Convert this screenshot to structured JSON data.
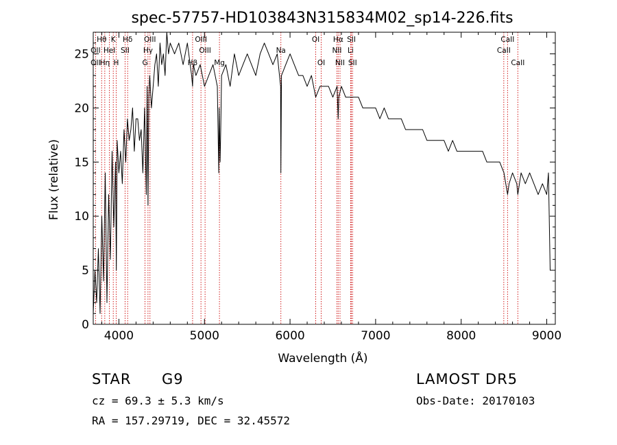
{
  "chart_data": {
    "type": "line",
    "title": "spec-57757-HD103843N315834M02_sp14-226.fits",
    "xlabel": "Wavelength (Å)",
    "ylabel": "Flux (relative)",
    "xlim": [
      3700,
      9100
    ],
    "ylim": [
      0,
      27
    ],
    "xticks": [
      4000,
      5000,
      6000,
      7000,
      8000,
      9000
    ],
    "yticks": [
      0,
      5,
      10,
      15,
      20,
      25
    ],
    "grid": false,
    "series": [
      {
        "x": [
          3700,
          3720,
          3740,
          3760,
          3780,
          3800,
          3820,
          3840,
          3860,
          3880,
          3900,
          3920,
          3940,
          3960,
          3970,
          3980,
          4000,
          4020,
          4040,
          4060,
          4080,
          4100,
          4120,
          4140,
          4160,
          4180,
          4200,
          4220,
          4240,
          4260,
          4280,
          4300,
          4320,
          4330,
          4340,
          4350,
          4360,
          4380,
          4400,
          4420,
          4440,
          4460,
          4480,
          4500,
          4520,
          4540,
          4560,
          4580,
          4600,
          4650,
          4700,
          4750,
          4800,
          4850,
          4861,
          4870,
          4900,
          4950,
          5000,
          5050,
          5100,
          5150,
          5167,
          5172,
          5183,
          5190,
          5200,
          5250,
          5300,
          5350,
          5400,
          5450,
          5500,
          5550,
          5600,
          5650,
          5700,
          5750,
          5800,
          5850,
          5890,
          5893,
          5896,
          5900,
          5950,
          6000,
          6050,
          6100,
          6150,
          6200,
          6250,
          6300,
          6350,
          6400,
          6450,
          6500,
          6550,
          6563,
          6570,
          6600,
          6650,
          6700,
          6750,
          6800,
          6850,
          6900,
          6950,
          7000,
          7050,
          7100,
          7150,
          7200,
          7250,
          7300,
          7350,
          7400,
          7450,
          7500,
          7550,
          7600,
          7650,
          7700,
          7750,
          7800,
          7850,
          7900,
          7950,
          8000,
          8050,
          8100,
          8150,
          8200,
          8250,
          8300,
          8350,
          8400,
          8450,
          8500,
          8542,
          8560,
          8600,
          8650,
          8662,
          8700,
          8750,
          8800,
          8850,
          8900,
          8950,
          9000,
          9020,
          9040
        ],
        "values": [
          1,
          5,
          2,
          7,
          1,
          10,
          4,
          14,
          2,
          12,
          6,
          16,
          9,
          15,
          5,
          17,
          14,
          16,
          13,
          18,
          15,
          19,
          17,
          18,
          20,
          16,
          19,
          19,
          17,
          18,
          14,
          20,
          12,
          22,
          11,
          21,
          23,
          20,
          22,
          24,
          25,
          22,
          26,
          24,
          25,
          23,
          27,
          25,
          26,
          25,
          26,
          24,
          26,
          23,
          22,
          24,
          23,
          24,
          22,
          23,
          24,
          22,
          14,
          20,
          15,
          18,
          23,
          24,
          22,
          25,
          23,
          24,
          25,
          24,
          23,
          25,
          26,
          25,
          24,
          25,
          22,
          14,
          18,
          23,
          24,
          25,
          24,
          23,
          23,
          22,
          23,
          21,
          22,
          22,
          22,
          21,
          22,
          19,
          21,
          22,
          21,
          21,
          21,
          21,
          20,
          20,
          20,
          20,
          19,
          20,
          19,
          19,
          19,
          19,
          18,
          18,
          18,
          18,
          18,
          17,
          17,
          17,
          17,
          17,
          16,
          17,
          16,
          16,
          16,
          16,
          16,
          16,
          16,
          15,
          15,
          15,
          15,
          14,
          12,
          13,
          14,
          13,
          12,
          14,
          13,
          14,
          13,
          12,
          13,
          12,
          14,
          5
        ]
      }
    ],
    "line_markers": [
      {
        "label": "Hθ",
        "x": 3798,
        "row": 0
      },
      {
        "label": "K",
        "x": 3934,
        "row": 0
      },
      {
        "label": "Hδ",
        "x": 4102,
        "row": 0
      },
      {
        "label": "OIII",
        "x": 4363,
        "row": 0
      },
      {
        "label": "OIII",
        "x": 4959,
        "row": 0
      },
      {
        "label": "OI",
        "x": 6300,
        "row": 0
      },
      {
        "label": "Hα",
        "x": 6563,
        "row": 0
      },
      {
        "label": "SII",
        "x": 6717,
        "row": 0
      },
      {
        "label": "CaII",
        "x": 8542,
        "row": 0
      },
      {
        "label": "OII",
        "x": 3727,
        "row": 1
      },
      {
        "label": "HeI",
        "x": 3889,
        "row": 1
      },
      {
        "label": "SII",
        "x": 4072,
        "row": 1
      },
      {
        "label": "Hγ",
        "x": 4340,
        "row": 1
      },
      {
        "label": "OIII",
        "x": 5007,
        "row": 1
      },
      {
        "label": "Na",
        "x": 5893,
        "row": 1
      },
      {
        "label": "NII",
        "x": 6548,
        "row": 1
      },
      {
        "label": "Li",
        "x": 6708,
        "row": 1
      },
      {
        "label": "CaII",
        "x": 8498,
        "row": 1
      },
      {
        "label": "OII",
        "x": 3727,
        "row": 2
      },
      {
        "label": "Hη",
        "x": 3835,
        "row": 2
      },
      {
        "label": "H",
        "x": 3968,
        "row": 2
      },
      {
        "label": "G",
        "x": 4305,
        "row": 2
      },
      {
        "label": "Mg",
        "x": 5175,
        "row": 2
      },
      {
        "label": "OI",
        "x": 6364,
        "row": 2
      },
      {
        "label": "NII",
        "x": 6584,
        "row": 2
      },
      {
        "label": "SII",
        "x": 6731,
        "row": 2
      },
      {
        "label": "CaII",
        "x": 8662,
        "row": 2
      },
      {
        "label": "Hβ",
        "x": 4861,
        "row": 2
      }
    ],
    "marker_lines": [
      3727,
      3798,
      3835,
      3889,
      3934,
      3968,
      4072,
      4102,
      4305,
      4340,
      4363,
      4861,
      4959,
      5007,
      5175,
      5893,
      6300,
      6364,
      6548,
      6563,
      6584,
      6708,
      6717,
      6731,
      8498,
      8542,
      8662
    ]
  },
  "info": {
    "object_class": "STAR",
    "subclass": "G9",
    "survey": "LAMOST DR5",
    "redshift": "cz = 69.3 ± 5.3 km/s",
    "obs_date": "Obs-Date: 20170103",
    "coords": "RA = 157.29719, DEC =  32.45572"
  }
}
